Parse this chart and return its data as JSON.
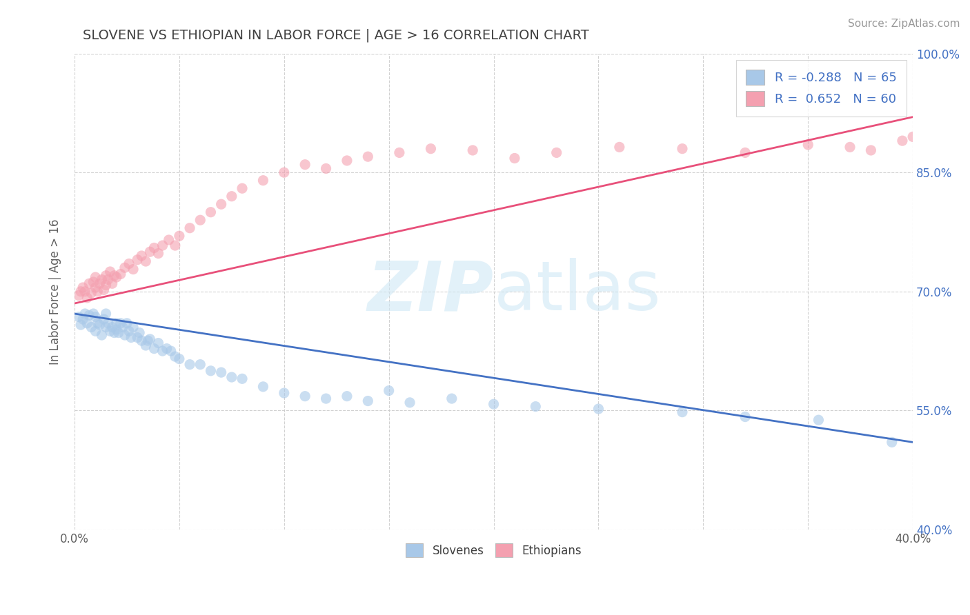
{
  "title": "SLOVENE VS ETHIOPIAN IN LABOR FORCE | AGE > 16 CORRELATION CHART",
  "source_text": "Source: ZipAtlas.com",
  "ylabel": "In Labor Force | Age > 16",
  "xlim": [
    0.0,
    0.4
  ],
  "ylim": [
    0.4,
    1.0
  ],
  "xticks": [
    0.0,
    0.05,
    0.1,
    0.15,
    0.2,
    0.25,
    0.3,
    0.35,
    0.4
  ],
  "yticks": [
    0.4,
    0.55,
    0.7,
    0.85,
    1.0
  ],
  "yticklabels": [
    "40.0%",
    "55.0%",
    "70.0%",
    "85.0%",
    "100.0%"
  ],
  "slovene_R": -0.288,
  "slovene_N": 65,
  "ethiopian_R": 0.652,
  "ethiopian_N": 60,
  "slovene_color": "#a8c8e8",
  "ethiopian_color": "#f4a0b0",
  "slovene_line_color": "#4472c4",
  "ethiopian_line_color": "#e8507a",
  "watermark_color": "#d0e8f5",
  "background_color": "#ffffff",
  "grid_color": "#cccccc",
  "title_color": "#404040",
  "axis_label_color": "#606060",
  "right_ytick_color": "#4472c4",
  "legend_R_color": "#4472c4",
  "slovene_scatter": {
    "x": [
      0.002,
      0.003,
      0.004,
      0.005,
      0.006,
      0.007,
      0.008,
      0.009,
      0.01,
      0.01,
      0.011,
      0.012,
      0.013,
      0.014,
      0.015,
      0.015,
      0.016,
      0.017,
      0.018,
      0.019,
      0.02,
      0.02,
      0.021,
      0.022,
      0.023,
      0.024,
      0.025,
      0.026,
      0.027,
      0.028,
      0.03,
      0.031,
      0.032,
      0.034,
      0.035,
      0.036,
      0.038,
      0.04,
      0.042,
      0.044,
      0.046,
      0.048,
      0.05,
      0.055,
      0.06,
      0.065,
      0.07,
      0.075,
      0.08,
      0.09,
      0.1,
      0.11,
      0.12,
      0.13,
      0.14,
      0.15,
      0.16,
      0.18,
      0.2,
      0.22,
      0.25,
      0.29,
      0.32,
      0.355,
      0.39
    ],
    "y": [
      0.668,
      0.658,
      0.665,
      0.672,
      0.66,
      0.67,
      0.655,
      0.672,
      0.668,
      0.65,
      0.66,
      0.658,
      0.645,
      0.665,
      0.672,
      0.655,
      0.66,
      0.65,
      0.655,
      0.648,
      0.66,
      0.652,
      0.648,
      0.66,
      0.655,
      0.645,
      0.66,
      0.65,
      0.642,
      0.655,
      0.642,
      0.648,
      0.638,
      0.632,
      0.638,
      0.64,
      0.628,
      0.635,
      0.625,
      0.628,
      0.625,
      0.618,
      0.615,
      0.608,
      0.608,
      0.6,
      0.598,
      0.592,
      0.59,
      0.58,
      0.572,
      0.568,
      0.565,
      0.568,
      0.562,
      0.575,
      0.56,
      0.565,
      0.558,
      0.555,
      0.552,
      0.548,
      0.542,
      0.538,
      0.51
    ]
  },
  "ethiopian_scatter": {
    "x": [
      0.002,
      0.003,
      0.004,
      0.005,
      0.006,
      0.007,
      0.008,
      0.009,
      0.01,
      0.01,
      0.011,
      0.012,
      0.013,
      0.014,
      0.015,
      0.015,
      0.016,
      0.017,
      0.018,
      0.019,
      0.02,
      0.022,
      0.024,
      0.026,
      0.028,
      0.03,
      0.032,
      0.034,
      0.036,
      0.038,
      0.04,
      0.042,
      0.045,
      0.048,
      0.05,
      0.055,
      0.06,
      0.065,
      0.07,
      0.075,
      0.08,
      0.09,
      0.1,
      0.11,
      0.12,
      0.13,
      0.14,
      0.155,
      0.17,
      0.19,
      0.21,
      0.23,
      0.26,
      0.29,
      0.32,
      0.35,
      0.37,
      0.38,
      0.395,
      0.4
    ],
    "y": [
      0.695,
      0.7,
      0.705,
      0.7,
      0.692,
      0.71,
      0.698,
      0.712,
      0.705,
      0.718,
      0.7,
      0.71,
      0.715,
      0.702,
      0.72,
      0.708,
      0.715,
      0.725,
      0.71,
      0.72,
      0.718,
      0.722,
      0.73,
      0.735,
      0.728,
      0.74,
      0.745,
      0.738,
      0.75,
      0.755,
      0.748,
      0.758,
      0.765,
      0.758,
      0.77,
      0.78,
      0.79,
      0.8,
      0.81,
      0.82,
      0.83,
      0.84,
      0.85,
      0.86,
      0.855,
      0.865,
      0.87,
      0.875,
      0.88,
      0.878,
      0.868,
      0.875,
      0.882,
      0.88,
      0.875,
      0.885,
      0.882,
      0.878,
      0.89,
      0.895
    ]
  },
  "slovene_trendline": {
    "x": [
      0.0,
      0.4
    ],
    "y": [
      0.672,
      0.51
    ]
  },
  "ethiopian_trendline": {
    "x": [
      0.0,
      0.4
    ],
    "y": [
      0.685,
      0.92
    ]
  }
}
